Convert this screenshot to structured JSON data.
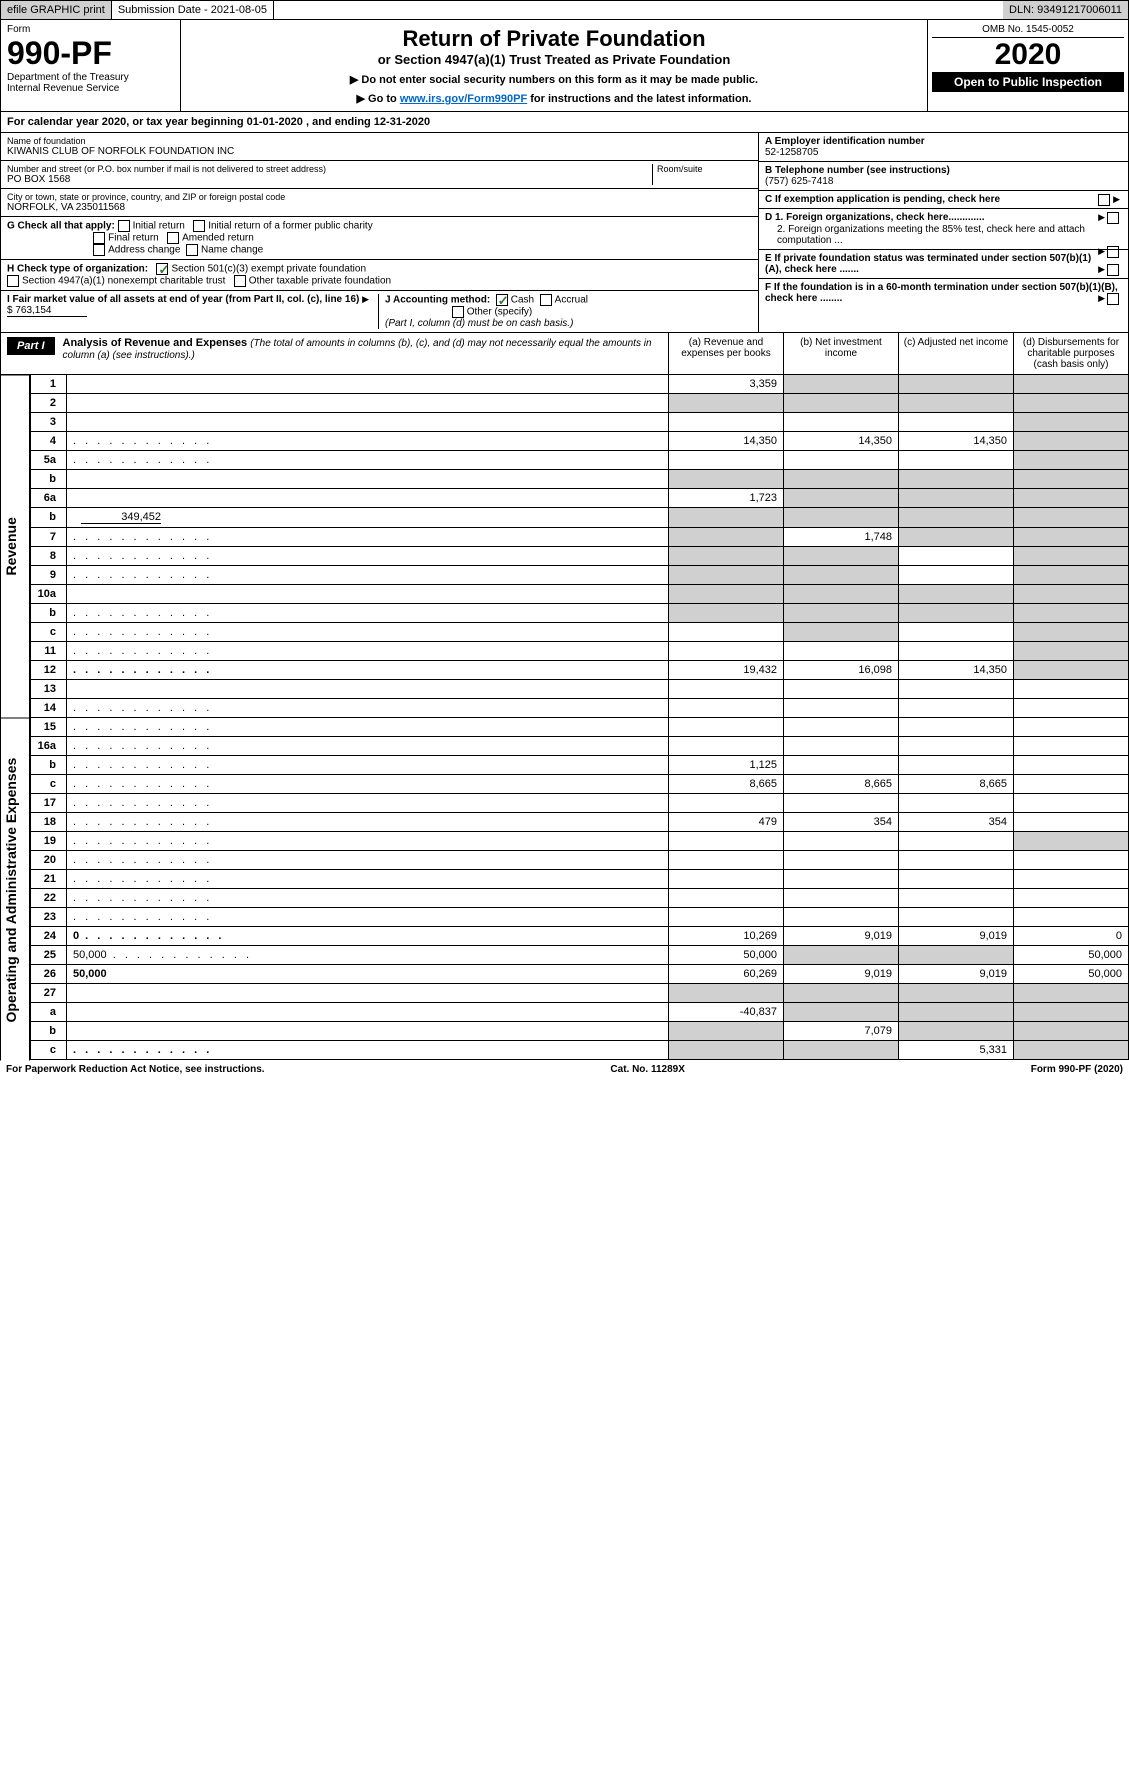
{
  "topbar": {
    "efile": "efile GRAPHIC print",
    "sub_label": "Submission Date - 2021-08-05",
    "dln": "DLN: 93491217006011"
  },
  "header": {
    "form_label": "Form",
    "form_num": "990-PF",
    "dept": "Department of the Treasury",
    "irs": "Internal Revenue Service",
    "title": "Return of Private Foundation",
    "subtitle": "or Section 4947(a)(1) Trust Treated as Private Foundation",
    "instr1": "▶ Do not enter social security numbers on this form as it may be made public.",
    "instr2_prefix": "▶ Go to ",
    "instr2_link": "www.irs.gov/Form990PF",
    "instr2_suffix": " for instructions and the latest information.",
    "omb": "OMB No. 1545-0052",
    "year": "2020",
    "open": "Open to Public Inspection"
  },
  "cal_year": "For calendar year 2020, or tax year beginning 01-01-2020        , and ending 12-31-2020",
  "foundation": {
    "name_label": "Name of foundation",
    "name": "KIWANIS CLUB OF NORFOLK FOUNDATION INC",
    "addr_label": "Number and street (or P.O. box number if mail is not delivered to street address)",
    "addr": "PO BOX 1568",
    "room_label": "Room/suite",
    "city_label": "City or town, state or province, country, and ZIP or foreign postal code",
    "city": "NORFOLK, VA  235011568",
    "ein_label": "A Employer identification number",
    "ein": "52-1258705",
    "phone_label": "B Telephone number (see instructions)",
    "phone": "(757) 625-7418",
    "c_label": "C If exemption application is pending, check here",
    "d1": "D 1. Foreign organizations, check here.............",
    "d2": "2. Foreign organizations meeting the 85% test, check here and attach computation ...",
    "e_label": "E If private foundation status was terminated under section 507(b)(1)(A), check here .......",
    "f_label": "F If the foundation is in a 60-month termination under section 507(b)(1)(B), check here ........"
  },
  "checks": {
    "g_label": "G Check all that apply:",
    "initial": "Initial return",
    "initial_former": "Initial return of a former public charity",
    "final": "Final return",
    "amended": "Amended return",
    "addr_change": "Address change",
    "name_change": "Name change",
    "h_label": "H Check type of organization:",
    "h_501c3": "Section 501(c)(3) exempt private foundation",
    "h_4947": "Section 4947(a)(1) nonexempt charitable trust",
    "h_other": "Other taxable private foundation",
    "i_label": "I Fair market value of all assets at end of year (from Part II, col. (c), line 16)",
    "i_val": "$  763,154",
    "j_label": "J Accounting method:",
    "j_cash": "Cash",
    "j_accrual": "Accrual",
    "j_other": "Other (specify)",
    "j_note": "(Part I, column (d) must be on cash basis.)"
  },
  "part1": {
    "label": "Part I",
    "title": "Analysis of Revenue and Expenses",
    "note": "(The total of amounts in columns (b), (c), and (d) may not necessarily equal the amounts in column (a) (see instructions).)",
    "col_a": "(a)  Revenue and expenses per books",
    "col_b": "(b)  Net investment income",
    "col_c": "(c)  Adjusted net income",
    "col_d": "(d)  Disbursements for charitable purposes (cash basis only)"
  },
  "side": {
    "revenue": "Revenue",
    "expenses": "Operating and Administrative Expenses"
  },
  "rows": [
    {
      "n": "1",
      "d": "",
      "a": "3,359",
      "b": "",
      "c": "",
      "sb": true,
      "sc": true,
      "sd": true
    },
    {
      "n": "2",
      "d": "",
      "a": "",
      "b": "",
      "c": "",
      "sa": true,
      "sb": true,
      "sc": true,
      "sd": true,
      "bold_word": "not"
    },
    {
      "n": "3",
      "d": "",
      "a": "",
      "b": "",
      "c": "",
      "sd": true
    },
    {
      "n": "4",
      "d": "",
      "a": "14,350",
      "b": "14,350",
      "c": "14,350",
      "dots": true,
      "sd": true
    },
    {
      "n": "5a",
      "d": "",
      "a": "",
      "b": "",
      "c": "",
      "dots": true,
      "sd": true
    },
    {
      "n": "b",
      "d": "",
      "a": "",
      "b": "",
      "c": "",
      "sa": true,
      "sb": true,
      "sc": true,
      "sd": true
    },
    {
      "n": "6a",
      "d": "",
      "a": "1,723",
      "b": "",
      "c": "",
      "sb": true,
      "sc": true,
      "sd": true
    },
    {
      "n": "b",
      "d": "",
      "val": "349,452",
      "a": "",
      "b": "",
      "c": "",
      "sa": true,
      "sb": true,
      "sc": true,
      "sd": true
    },
    {
      "n": "7",
      "d": "",
      "a": "",
      "b": "1,748",
      "c": "",
      "dots": true,
      "sa": true,
      "sc": true,
      "sd": true
    },
    {
      "n": "8",
      "d": "",
      "a": "",
      "b": "",
      "c": "",
      "dots": true,
      "sa": true,
      "sb": true,
      "sd": true
    },
    {
      "n": "9",
      "d": "",
      "a": "",
      "b": "",
      "c": "",
      "dots": true,
      "sa": true,
      "sb": true,
      "sd": true
    },
    {
      "n": "10a",
      "d": "",
      "a": "",
      "b": "",
      "c": "",
      "sa": true,
      "sb": true,
      "sc": true,
      "sd": true
    },
    {
      "n": "b",
      "d": "",
      "a": "",
      "b": "",
      "c": "",
      "dots": true,
      "sa": true,
      "sb": true,
      "sc": true,
      "sd": true
    },
    {
      "n": "c",
      "d": "",
      "a": "",
      "b": "",
      "c": "",
      "dots": true,
      "sb": true,
      "sd": true
    },
    {
      "n": "11",
      "d": "",
      "a": "",
      "b": "",
      "c": "",
      "dots": true,
      "sd": true
    },
    {
      "n": "12",
      "d": "",
      "a": "19,432",
      "b": "16,098",
      "c": "14,350",
      "dots": true,
      "bold": true,
      "sd": true
    }
  ],
  "exp_rows": [
    {
      "n": "13",
      "d": "",
      "a": "",
      "b": "",
      "c": ""
    },
    {
      "n": "14",
      "d": "",
      "a": "",
      "b": "",
      "c": "",
      "dots": true
    },
    {
      "n": "15",
      "d": "",
      "a": "",
      "b": "",
      "c": "",
      "dots": true
    },
    {
      "n": "16a",
      "d": "",
      "a": "",
      "b": "",
      "c": "",
      "dots": true
    },
    {
      "n": "b",
      "d": "",
      "a": "1,125",
      "b": "",
      "c": "",
      "dots": true
    },
    {
      "n": "c",
      "d": "",
      "a": "8,665",
      "b": "8,665",
      "c": "8,665",
      "dots": true
    },
    {
      "n": "17",
      "d": "",
      "a": "",
      "b": "",
      "c": "",
      "dots": true
    },
    {
      "n": "18",
      "d": "",
      "a": "479",
      "b": "354",
      "c": "354",
      "dots": true
    },
    {
      "n": "19",
      "d": "",
      "a": "",
      "b": "",
      "c": "",
      "dots": true,
      "sd": true
    },
    {
      "n": "20",
      "d": "",
      "a": "",
      "b": "",
      "c": "",
      "dots": true
    },
    {
      "n": "21",
      "d": "",
      "a": "",
      "b": "",
      "c": "",
      "dots": true
    },
    {
      "n": "22",
      "d": "",
      "a": "",
      "b": "",
      "c": "",
      "dots": true
    },
    {
      "n": "23",
      "d": "",
      "a": "",
      "b": "",
      "c": "",
      "dots": true
    },
    {
      "n": "24",
      "d": "0",
      "a": "10,269",
      "b": "9,019",
      "c": "9,019",
      "dots": true,
      "bold": true
    },
    {
      "n": "25",
      "d": "50,000",
      "a": "50,000",
      "b": "",
      "c": "",
      "dots": true,
      "sb": true,
      "sc": true
    },
    {
      "n": "26",
      "d": "50,000",
      "a": "60,269",
      "b": "9,019",
      "c": "9,019",
      "bold": true
    },
    {
      "n": "27",
      "d": "",
      "a": "",
      "b": "",
      "c": "",
      "sa": true,
      "sb": true,
      "sc": true,
      "sd": true
    },
    {
      "n": "a",
      "d": "",
      "a": "-40,837",
      "b": "",
      "c": "",
      "bold": true,
      "sb": true,
      "sc": true,
      "sd": true
    },
    {
      "n": "b",
      "d": "",
      "a": "",
      "b": "7,079",
      "c": "",
      "bold": true,
      "sa": true,
      "sc": true,
      "sd": true
    },
    {
      "n": "c",
      "d": "",
      "a": "",
      "b": "",
      "c": "5,331",
      "dots": true,
      "bold": true,
      "sa": true,
      "sb": true,
      "sd": true
    }
  ],
  "footer": {
    "left": "For Paperwork Reduction Act Notice, see instructions.",
    "mid": "Cat. No. 11289X",
    "right": "Form 990-PF (2020)"
  }
}
